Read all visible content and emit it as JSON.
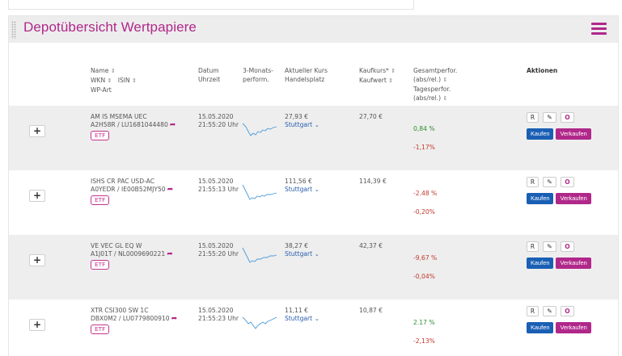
{
  "panel": {
    "title": "Depotübersicht Wertpapiere",
    "accent_color": "#b0288a"
  },
  "header": {
    "name": "Name",
    "wkn": "WKN",
    "isin": "ISIN",
    "wp_art": "WP-Art",
    "datum": "Datum",
    "uhrzeit": "Uhrzeit",
    "monats_1": "3-Monats-",
    "monats_2": "perform.",
    "kurs_1": "Aktueller Kurs",
    "kurs_2": "Handelsplatz",
    "kaufkurs": "Kaufkurs*",
    "kaufwert": "Kaufwert",
    "gesamt_1": "Gesamtperfor.",
    "gesamt_2": "(abs/rel.)",
    "tages_1": "Tagesperfor.",
    "tages_2": "(abs/rel.)",
    "aktionen": "Aktionen",
    "sort_icon": "⇕"
  },
  "actions": {
    "r_label": "R",
    "pen_icon": "✎",
    "o_label": "O",
    "kaufen_label": "Kaufen",
    "verkaufen_label": "Verkaufen",
    "plus_label": "+"
  },
  "rows": [
    {
      "name": "AM IS MSEMA UEC",
      "ids": "A2H58R / LU1681044480",
      "type": "ETF",
      "date": "15.05.2020",
      "time": "21:55:20 Uhr",
      "price": "27,93 €",
      "place": "Stuttgart",
      "buy_price": "27,70 €",
      "perf_total": "0,84 %",
      "perf_total_sign": "pos",
      "perf_day": "-1,17%",
      "perf_day_sign": "neg"
    },
    {
      "name": "ISHS CR PAC USD-AC",
      "ids": "A0YEDR / IE00B52MJY50",
      "type": "ETF",
      "date": "15.05.2020",
      "time": "21:55:13 Uhr",
      "price": "111,56 €",
      "place": "Stuttgart",
      "buy_price": "114,39 €",
      "perf_total": "-2.48 %",
      "perf_total_sign": "neg",
      "perf_day": "-0,20%",
      "perf_day_sign": "neg"
    },
    {
      "name": "VE VEC GL EQ W",
      "ids": "A1J01T / NL0009690221",
      "type": "ETF",
      "date": "15.05.2020",
      "time": "21:55:20 Uhr",
      "price": "38,27 €",
      "place": "Stuttgart",
      "buy_price": "42,37 €",
      "perf_total": "-9,67 %",
      "perf_total_sign": "neg",
      "perf_day": "-0,04%",
      "perf_day_sign": "neg"
    },
    {
      "name": "XTR CSI300 SW 1C",
      "ids": "DBX0M2 / LU0779800910",
      "type": "ETF",
      "date": "15.05.2020",
      "time": "21:55:23 Uhr",
      "price": "11,11 €",
      "place": "Stuttgart",
      "buy_price": "10,87 €",
      "perf_total": "2.17 %",
      "perf_total_sign": "pos",
      "perf_day": "-2,13%",
      "perf_day_sign": "neg"
    }
  ]
}
